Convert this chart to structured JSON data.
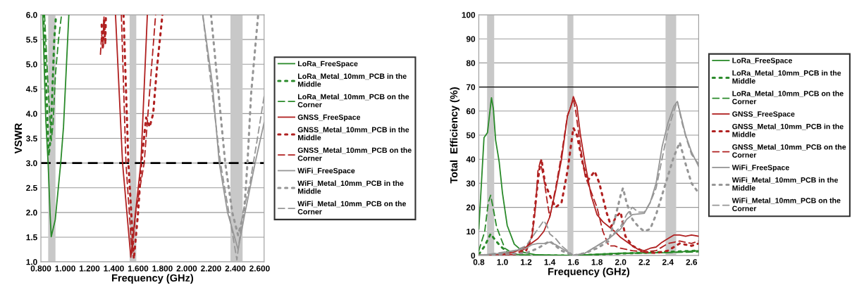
{
  "chart_data": [
    {
      "type": "line",
      "xlabel": "Frequency (GHz)",
      "ylabel": "VSWR",
      "xlim": [
        0.8,
        2.637
      ],
      "xticks": [
        {
          "value": 0.8,
          "label": "0.800"
        },
        {
          "value": 1.0,
          "label": "1.000"
        },
        {
          "value": 1.2,
          "label": "1.200"
        },
        {
          "value": 1.4,
          "label": "1.400"
        },
        {
          "value": 1.6,
          "label": "1.600"
        },
        {
          "value": 1.8,
          "label": "1.800"
        },
        {
          "value": 2.0,
          "label": "2.000"
        },
        {
          "value": 2.2,
          "label": "2.200"
        },
        {
          "value": 2.4,
          "label": "2.400"
        },
        {
          "value": 2.6,
          "label": "2.600"
        }
      ],
      "ylim": [
        1.0,
        6.0
      ],
      "yticks": [
        {
          "value": 1.0,
          "label": "1.0"
        },
        1.5,
        {
          "value": 2.0,
          "label": "2.0"
        },
        2.5,
        {
          "value": 3.0,
          "label": "3.0"
        },
        3.5,
        {
          "value": 4.0,
          "label": "4.0"
        },
        4.5,
        {
          "value": 5.0,
          "label": "5.0"
        },
        5.5,
        {
          "value": 6.0,
          "label": "6.0"
        }
      ],
      "grid": "y",
      "legend": "right",
      "ref_lines": [
        {
          "axis": "y",
          "value": 3.0,
          "label": null,
          "color": "#000000",
          "line_style": "dashed"
        }
      ],
      "bands": [
        {
          "axis": "x",
          "from": 0.86,
          "to": 0.92,
          "label": null,
          "color": "#c8c8c8"
        },
        {
          "axis": "x",
          "from": 1.53,
          "to": 1.585,
          "label": null,
          "color": "#c8c8c8"
        },
        {
          "axis": "x",
          "from": 2.36,
          "to": 2.46,
          "label": null,
          "color": "#c8c8c8"
        }
      ],
      "series": [
        {
          "name": "LoRa_FreeSpace",
          "color": "#2a8a2a",
          "line_style": "solid",
          "x": [
            0.815,
            0.84,
            0.86,
            0.875,
            0.885,
            0.918,
            0.963,
            0.986,
            1.03
          ],
          "values": [
            6.0,
            3.9,
            2.97,
            2.0,
            1.51,
            1.85,
            3.0,
            3.73,
            6.0
          ]
        },
        {
          "name": "LoRa_Metal_10mm_PCB in the\nMiddle",
          "color": "#2a8a2a",
          "line_style": "dotted",
          "x": [
            0.82,
            0.845,
            0.864,
            0.88,
            0.895,
            0.91,
            0.925
          ],
          "values": [
            6.0,
            4.5,
            3.15,
            3.5,
            4.5,
            5.5,
            6.0
          ]
        },
        {
          "name": "LoRa_Metal_10mm_PCB on the\nCorner",
          "color": "#2a8a2a",
          "line_style": "dashed",
          "x": [
            0.83,
            0.86,
            0.885,
            0.9,
            0.92,
            0.945,
            0.97
          ],
          "values": [
            6.0,
            4.5,
            3.45,
            3.8,
            4.8,
            5.5,
            6.0
          ]
        },
        {
          "name": "GNSS_FreeSpace",
          "color": "#b02020",
          "line_style": "solid",
          "x": [
            1.414,
            1.472,
            1.54,
            1.579,
            1.623,
            1.676
          ],
          "values": [
            6.0,
            3.0,
            1.09,
            2.0,
            3.0,
            6.0
          ]
        },
        {
          "name": "GNSS_Metal_10mm_PCB in the\nMiddle",
          "color": "#b02020",
          "line_style": "dotted",
          "x": [
            1.3,
            1.31,
            1.32,
            1.33,
            1.335,
            1.4,
            1.48,
            1.52,
            1.565,
            1.6,
            1.627,
            1.666,
            1.695,
            1.724,
            1.753,
            1.8
          ],
          "values": [
            5.8,
            5.3,
            5.9,
            5.4,
            6.0,
            null,
            6.0,
            3.0,
            1.06,
            2.0,
            3.0,
            3.92,
            3.73,
            4.0,
            4.87,
            6.0
          ]
        },
        {
          "name": "GNSS_Metal_10mm_PCB on the\nCorner",
          "color": "#b02020",
          "line_style": "dashed",
          "x": [
            1.29,
            1.3,
            1.31,
            1.32,
            1.4,
            1.462,
            1.5,
            1.55,
            1.58,
            1.65,
            1.7,
            1.744
          ],
          "values": [
            5.2,
            5.6,
            5.4,
            6.0,
            null,
            6.0,
            3.0,
            1.18,
            2.0,
            3.0,
            4.6,
            6.0
          ]
        },
        {
          "name": "WiFi_FreeSpace",
          "color": "#969696",
          "line_style": "solid",
          "x": [
            2.132,
            2.21,
            2.268,
            2.336,
            2.423,
            2.48,
            2.563,
            2.637
          ],
          "values": [
            6.0,
            4.63,
            3.0,
            2.0,
            1.25,
            2.0,
            3.0,
            3.82
          ]
        },
        {
          "name": "WiFi_Metal_10mm_PCB in the\nMiddle",
          "color": "#969696",
          "line_style": "dotted",
          "x": [
            2.2,
            2.317,
            2.375,
            2.423,
            2.472,
            2.5,
            2.53,
            2.588
          ],
          "values": [
            6.0,
            3.0,
            2.0,
            1.54,
            2.0,
            3.0,
            4.4,
            6.0
          ]
        },
        {
          "name": "WiFi_Metal_10mm_PCB on the\nCorner",
          "color": "#969696",
          "line_style": "dashed",
          "x": [
            2.132,
            2.278,
            2.413,
            2.462,
            2.52,
            2.578,
            2.637
          ],
          "values": [
            6.0,
            3.0,
            1.04,
            2.0,
            2.58,
            3.44,
            4.35
          ]
        }
      ]
    },
    {
      "type": "line",
      "xlabel": "Frequency (GHz)",
      "ylabel": "Total  Efficiency (%)",
      "xlim": [
        0.8,
        2.66
      ],
      "xticks": [
        0.8,
        {
          "value": 1.0,
          "label": "1.0"
        },
        1.2,
        1.4,
        1.6,
        1.8,
        {
          "value": 2.0,
          "label": "2.0"
        },
        2.2,
        2.4,
        2.6
      ],
      "ylim": [
        0,
        100
      ],
      "yticks": [
        0,
        10,
        20,
        30,
        40,
        50,
        60,
        70,
        80,
        90,
        100
      ],
      "grid": "y",
      "legend": "right",
      "ref_lines": [
        {
          "axis": "y",
          "value": 70,
          "label": null,
          "color": "#000000",
          "line_style": "solid"
        }
      ],
      "bands": [
        {
          "axis": "x",
          "from": 0.87,
          "to": 0.93,
          "label": null,
          "color": "#c8c8c8"
        },
        {
          "axis": "x",
          "from": 1.55,
          "to": 1.6,
          "label": null,
          "color": "#c8c8c8"
        },
        {
          "axis": "x",
          "from": 2.38,
          "to": 2.47,
          "label": null,
          "color": "#c8c8c8"
        }
      ],
      "series": [
        {
          "name": "LoRa_FreeSpace",
          "color": "#2a8a2a",
          "line_style": "solid",
          "x": [
            0.8,
            0.844,
            0.873,
            0.907,
            0.923,
            0.942,
            0.972,
            1.0,
            1.04,
            1.1,
            1.18,
            1.28,
            1.6,
            2.0,
            2.4,
            2.66
          ],
          "values": [
            11,
            49,
            51,
            65.5,
            61,
            48,
            39,
            26,
            12.5,
            4.7,
            1.3,
            0.3,
            0,
            1,
            1.2,
            2
          ]
        },
        {
          "name": "LoRa_Metal_10mm_PCB in the\nMiddle",
          "color": "#2a8a2a",
          "line_style": "dotted",
          "x": [
            0.8,
            0.85,
            0.9,
            0.93,
            0.98,
            1.05,
            1.2,
            1.6,
            2.0,
            2.66
          ],
          "values": [
            0.5,
            4,
            9,
            7,
            4,
            1,
            0,
            0,
            0.8,
            2
          ]
        },
        {
          "name": "LoRa_Metal_10mm_PCB on the\nCorner",
          "color": "#2a8a2a",
          "line_style": "dashed",
          "x": [
            0.8,
            0.85,
            0.88,
            0.9,
            0.92,
            0.95,
            0.98,
            1.02,
            1.1,
            1.3,
            1.6,
            2.0,
            2.66
          ],
          "values": [
            2,
            10,
            22,
            25,
            20,
            12,
            8,
            3,
            0.5,
            0,
            0,
            0.8,
            1.5
          ]
        },
        {
          "name": "GNSS_FreeSpace",
          "color": "#b02020",
          "line_style": "solid",
          "x": [
            0.8,
            1.0,
            1.1,
            1.2,
            1.3,
            1.35,
            1.4,
            1.45,
            1.5,
            1.55,
            1.58,
            1.6,
            1.63,
            1.66,
            1.7,
            1.75,
            1.8,
            1.85,
            1.9,
            1.95,
            2.0,
            2.1,
            2.15,
            2.2,
            2.25,
            2.3,
            2.35,
            2.4,
            2.45,
            2.5,
            2.55,
            2.6,
            2.66
          ],
          "values": [
            0,
            0.5,
            1.5,
            3.5,
            7,
            10,
            16,
            27,
            40,
            58,
            62,
            66,
            62,
            50,
            38,
            25,
            17,
            14,
            12,
            10,
            7.5,
            4,
            2.5,
            2,
            3,
            3.5,
            5.5,
            7,
            8.5,
            8.5,
            8,
            8.5,
            8
          ]
        },
        {
          "name": "GNSS_Metal_10mm_PCB in the\nMiddle",
          "color": "#b02020",
          "line_style": "dotted",
          "x": [
            0.8,
            1.1,
            1.2,
            1.25,
            1.28,
            1.31,
            1.33,
            1.36,
            1.4,
            1.45,
            1.5,
            1.55,
            1.6,
            1.63,
            1.68,
            1.72,
            1.78,
            1.82,
            1.88,
            1.92,
            1.96,
            2.0,
            2.04,
            2.1,
            2.2,
            2.3,
            2.4,
            2.5,
            2.6,
            2.66
          ],
          "values": [
            0,
            0.5,
            2,
            8,
            22,
            35,
            40,
            30,
            25,
            20,
            22,
            35,
            53,
            50,
            38,
            31,
            35,
            30,
            18,
            12,
            16,
            18,
            8,
            4,
            1.5,
            1,
            2,
            5,
            4,
            5
          ]
        },
        {
          "name": "GNSS_Metal_10mm_PCB on the\nCorner",
          "color": "#b02020",
          "line_style": "dashed",
          "x": [
            0.8,
            1.1,
            1.2,
            1.25,
            1.28,
            1.3,
            1.32,
            1.35,
            1.38,
            1.4,
            1.45,
            1.5,
            1.55,
            1.6,
            1.62,
            1.66,
            1.7,
            1.8,
            1.85,
            1.9,
            1.95,
            2.0,
            2.1,
            2.2,
            2.3,
            2.4,
            2.5,
            2.6,
            2.66
          ],
          "values": [
            0,
            0.5,
            3,
            8,
            20,
            35,
            39,
            32,
            22,
            16,
            28,
            42,
            58,
            65,
            60,
            45,
            33,
            20,
            10,
            4,
            4,
            3,
            2,
            1.5,
            2,
            5,
            6,
            5,
            6
          ]
        },
        {
          "name": "WiFi_FreeSpace",
          "color": "#969696",
          "line_style": "solid",
          "x": [
            0.8,
            1.0,
            1.2,
            1.25,
            1.3,
            1.35,
            1.4,
            1.45,
            1.5,
            1.55,
            1.6,
            1.7,
            1.8,
            1.9,
            2.0,
            2.05,
            2.1,
            2.2,
            2.25,
            2.3,
            2.35,
            2.4,
            2.45,
            2.48,
            2.5,
            2.55,
            2.6,
            2.63,
            2.66
          ],
          "values": [
            0,
            1,
            3,
            4.5,
            5,
            5,
            5.5,
            4.5,
            3,
            1.5,
            0,
            1,
            4,
            7,
            11,
            15,
            17,
            17.5,
            22,
            30,
            45,
            55,
            62,
            64,
            60,
            50,
            43,
            40,
            37
          ]
        },
        {
          "name": "WiFi_Metal_10mm_PCB in the\nMiddle",
          "color": "#969696",
          "line_style": "dotted",
          "x": [
            0.8,
            1.2,
            1.3,
            1.4,
            1.5,
            1.6,
            1.7,
            1.8,
            1.9,
            1.95,
            2.0,
            2.02,
            2.05,
            2.1,
            2.15,
            2.2,
            2.25,
            2.3,
            2.35,
            2.4,
            2.45,
            2.5,
            2.55,
            2.6,
            2.66
          ],
          "values": [
            0,
            1,
            3,
            6,
            2,
            0,
            1,
            3,
            6,
            15,
            25,
            28,
            22,
            15,
            12,
            10,
            11,
            17,
            25,
            33,
            41,
            47,
            38,
            30,
            26
          ]
        },
        {
          "name": "WiFi_Metal_10mm_PCB on the\nCorner",
          "color": "#969696",
          "line_style": "dashed",
          "x": [
            0.8,
            1.1,
            1.2,
            1.3,
            1.35,
            1.38,
            1.4,
            1.45,
            1.5,
            1.55,
            1.6,
            1.7,
            1.8,
            1.9,
            2.0,
            2.05,
            2.1,
            2.15,
            2.2,
            2.25,
            2.3,
            2.35,
            2.4,
            2.45,
            2.48,
            2.52,
            2.56,
            2.6,
            2.66
          ],
          "values": [
            0,
            2,
            4,
            11,
            14.5,
            12,
            9,
            7,
            4,
            2,
            0,
            1,
            4,
            7,
            12,
            17,
            20,
            18,
            18,
            22,
            28,
            40,
            52,
            60,
            64,
            55,
            48,
            42,
            38
          ]
        }
      ]
    }
  ]
}
